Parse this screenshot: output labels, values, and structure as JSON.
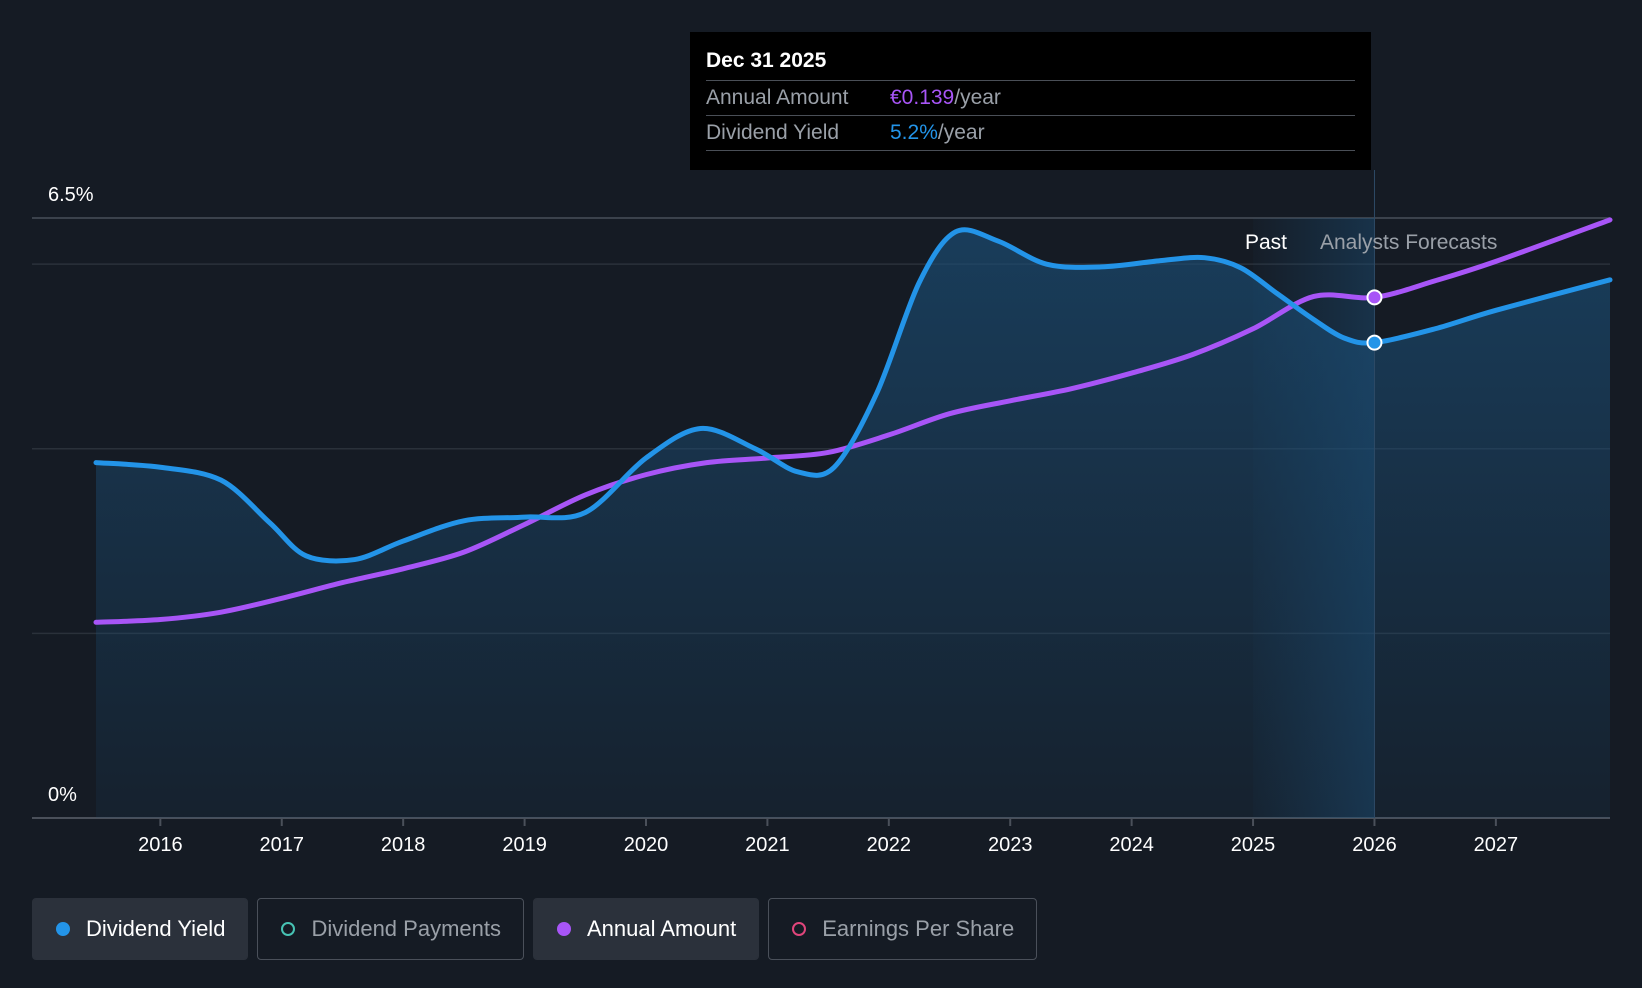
{
  "tooltip": {
    "date": "Dec 31 2025",
    "annual_label": "Annual Amount",
    "annual_value": "€0.139",
    "yield_label": "Dividend Yield",
    "yield_value": "5.2%",
    "unit": "/year"
  },
  "chart_data": {
    "type": "line",
    "y_axis_labels": [
      "6.5%",
      "0%"
    ],
    "ylim": [
      0,
      6.5
    ],
    "xlim": [
      2015.47,
      2027.94
    ],
    "x_ticks": [
      2016,
      2017,
      2018,
      2019,
      2020,
      2021,
      2022,
      2023,
      2024,
      2025,
      2026,
      2027
    ],
    "past_label": "Past",
    "forecast_label": "Analysts Forecasts",
    "forecast_start": 2025.47,
    "marker_x": 2026.0,
    "series": [
      {
        "name": "Dividend Yield",
        "color": "#2394e8",
        "points": [
          [
            2015.47,
            3.85
          ],
          [
            2016.0,
            3.8
          ],
          [
            2016.5,
            3.66
          ],
          [
            2016.9,
            3.2
          ],
          [
            2017.2,
            2.84
          ],
          [
            2017.6,
            2.8
          ],
          [
            2018.0,
            3.0
          ],
          [
            2018.5,
            3.22
          ],
          [
            2019.0,
            3.26
          ],
          [
            2019.5,
            3.31
          ],
          [
            2020.0,
            3.9
          ],
          [
            2020.45,
            4.22
          ],
          [
            2020.9,
            4.0
          ],
          [
            2021.25,
            3.75
          ],
          [
            2021.55,
            3.8
          ],
          [
            2021.9,
            4.6
          ],
          [
            2022.25,
            5.8
          ],
          [
            2022.55,
            6.35
          ],
          [
            2022.9,
            6.25
          ],
          [
            2023.3,
            6.0
          ],
          [
            2023.75,
            5.97
          ],
          [
            2024.25,
            6.04
          ],
          [
            2024.6,
            6.07
          ],
          [
            2024.9,
            5.96
          ],
          [
            2025.2,
            5.68
          ],
          [
            2025.5,
            5.4
          ],
          [
            2025.75,
            5.2
          ],
          [
            2026.0,
            5.15
          ],
          [
            2026.5,
            5.3
          ],
          [
            2027.0,
            5.5
          ],
          [
            2027.94,
            5.83
          ]
        ]
      },
      {
        "name": "Annual Amount",
        "color": "#a855f7",
        "points": [
          [
            2015.47,
            2.12
          ],
          [
            2016.0,
            2.15
          ],
          [
            2016.5,
            2.23
          ],
          [
            2017.0,
            2.38
          ],
          [
            2017.5,
            2.55
          ],
          [
            2018.0,
            2.7
          ],
          [
            2018.5,
            2.88
          ],
          [
            2019.0,
            3.18
          ],
          [
            2019.5,
            3.5
          ],
          [
            2020.0,
            3.72
          ],
          [
            2020.5,
            3.85
          ],
          [
            2021.0,
            3.9
          ],
          [
            2021.5,
            3.96
          ],
          [
            2022.0,
            4.15
          ],
          [
            2022.5,
            4.38
          ],
          [
            2023.0,
            4.52
          ],
          [
            2023.5,
            4.65
          ],
          [
            2024.0,
            4.82
          ],
          [
            2024.5,
            5.02
          ],
          [
            2025.0,
            5.3
          ],
          [
            2025.5,
            5.65
          ],
          [
            2026.0,
            5.64
          ],
          [
            2026.5,
            5.82
          ],
          [
            2027.0,
            6.03
          ],
          [
            2027.94,
            6.48
          ]
        ]
      }
    ]
  },
  "legend": [
    {
      "label": "Dividend Yield",
      "color": "#2394e8",
      "active": true
    },
    {
      "label": "Dividend Payments",
      "color": "#47c3b4",
      "active": false
    },
    {
      "label": "Annual Amount",
      "color": "#a855f7",
      "active": true
    },
    {
      "label": "Earnings Per Share",
      "color": "#e0457b",
      "active": false
    }
  ]
}
